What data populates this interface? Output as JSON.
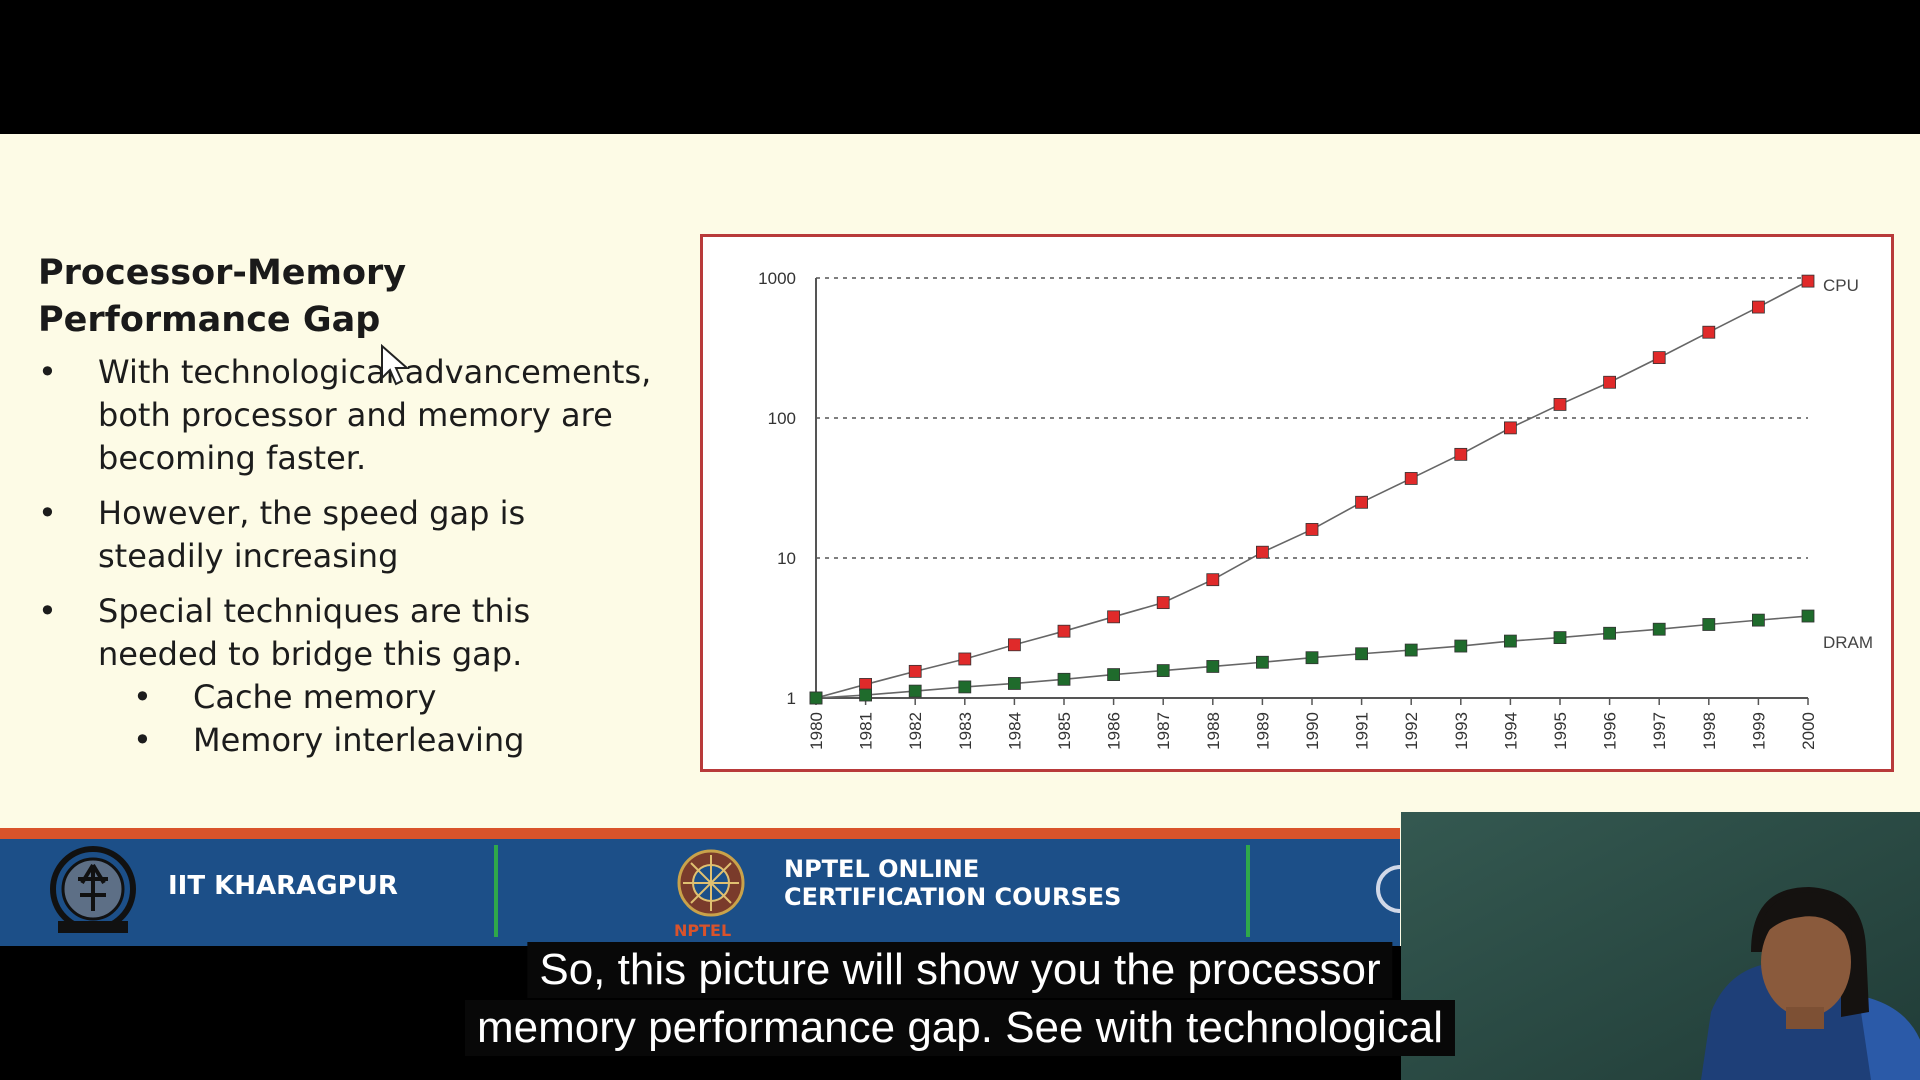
{
  "slide": {
    "title": "Processor-Memory Performance Gap",
    "bullets": [
      "With technological advancements, both processor and memory are becoming faster.",
      "However, the speed gap is steadily increasing",
      "Special techniques are this needed to bridge this gap."
    ],
    "sub_bullets": [
      "Cache memory",
      "Memory interleaving"
    ]
  },
  "chart_data": {
    "type": "line",
    "y_scale": "log",
    "ylim": [
      1,
      1000
    ],
    "y_ticks": [
      "1",
      "10",
      "100",
      "1000"
    ],
    "categories": [
      "1980",
      "1981",
      "1982",
      "1983",
      "1984",
      "1985",
      "1986",
      "1987",
      "1988",
      "1989",
      "1990",
      "1991",
      "1992",
      "1993",
      "1994",
      "1995",
      "1996",
      "1997",
      "1998",
      "1999",
      "2000"
    ],
    "series": [
      {
        "name": "CPU",
        "color": "#e02a2a",
        "values": [
          1,
          1.25,
          1.55,
          1.9,
          2.4,
          3.0,
          3.8,
          4.8,
          7.0,
          11,
          16,
          25,
          37,
          55,
          85,
          125,
          180,
          270,
          410,
          620,
          950
        ]
      },
      {
        "name": "DRAM",
        "color": "#1f6b2c",
        "values": [
          1,
          1.05,
          1.12,
          1.2,
          1.27,
          1.36,
          1.47,
          1.57,
          1.68,
          1.8,
          1.94,
          2.07,
          2.2,
          2.35,
          2.55,
          2.7,
          2.9,
          3.1,
          3.35,
          3.6,
          3.85
        ]
      }
    ],
    "grid": true
  },
  "footer": {
    "institute": "IIT KHARAGPUR",
    "program_line1": "NPTEL ONLINE",
    "program_line2": "CERTIFICATION COURSES",
    "nptel_label": "NPTEL"
  },
  "caption": {
    "line1": "So, this picture will show you the processor",
    "line2": "memory performance gap. See with technological"
  }
}
